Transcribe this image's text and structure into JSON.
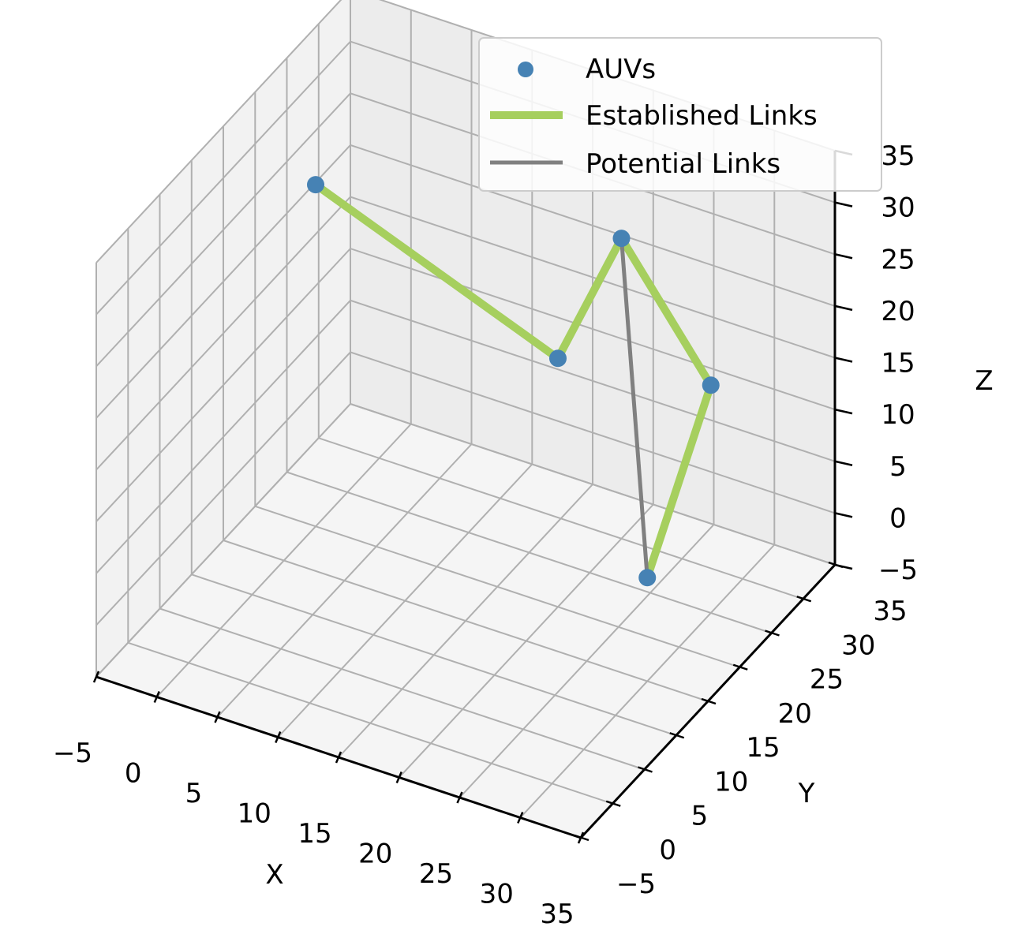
{
  "chart_data": {
    "type": "scatter3d",
    "xlabel": "X",
    "ylabel": "Y",
    "zlabel": "Z",
    "xlim": [
      -5,
      35
    ],
    "ylim": [
      -5,
      35
    ],
    "zlim": [
      -5,
      35
    ],
    "ticks": [
      -5,
      0,
      5,
      10,
      15,
      20,
      25,
      30,
      35
    ],
    "tick_labels": [
      "−5",
      "0",
      "5",
      "10",
      "15",
      "20",
      "25",
      "30",
      "35"
    ],
    "grid": true,
    "legend_position": "top-right",
    "series": [
      {
        "name": "AUVs",
        "kind": "points",
        "color": "#4682b4",
        "points": [
          {
            "x": 0,
            "y": 20,
            "z": 28
          },
          {
            "x": 20,
            "y": 20,
            "z": 19
          },
          {
            "x": 20,
            "y": 30,
            "z": 24
          },
          {
            "x": 30,
            "y": 25,
            "z": 17
          },
          {
            "x": 30,
            "y": 15,
            "z": 5
          }
        ]
      },
      {
        "name": "Established Links",
        "kind": "lines",
        "color": "#a6cf5e",
        "links": [
          [
            0,
            1
          ],
          [
            1,
            2
          ],
          [
            2,
            3
          ],
          [
            3,
            4
          ]
        ]
      },
      {
        "name": "Potential Links",
        "kind": "lines",
        "color": "#808080",
        "links": [
          [
            2,
            4
          ]
        ]
      }
    ]
  }
}
